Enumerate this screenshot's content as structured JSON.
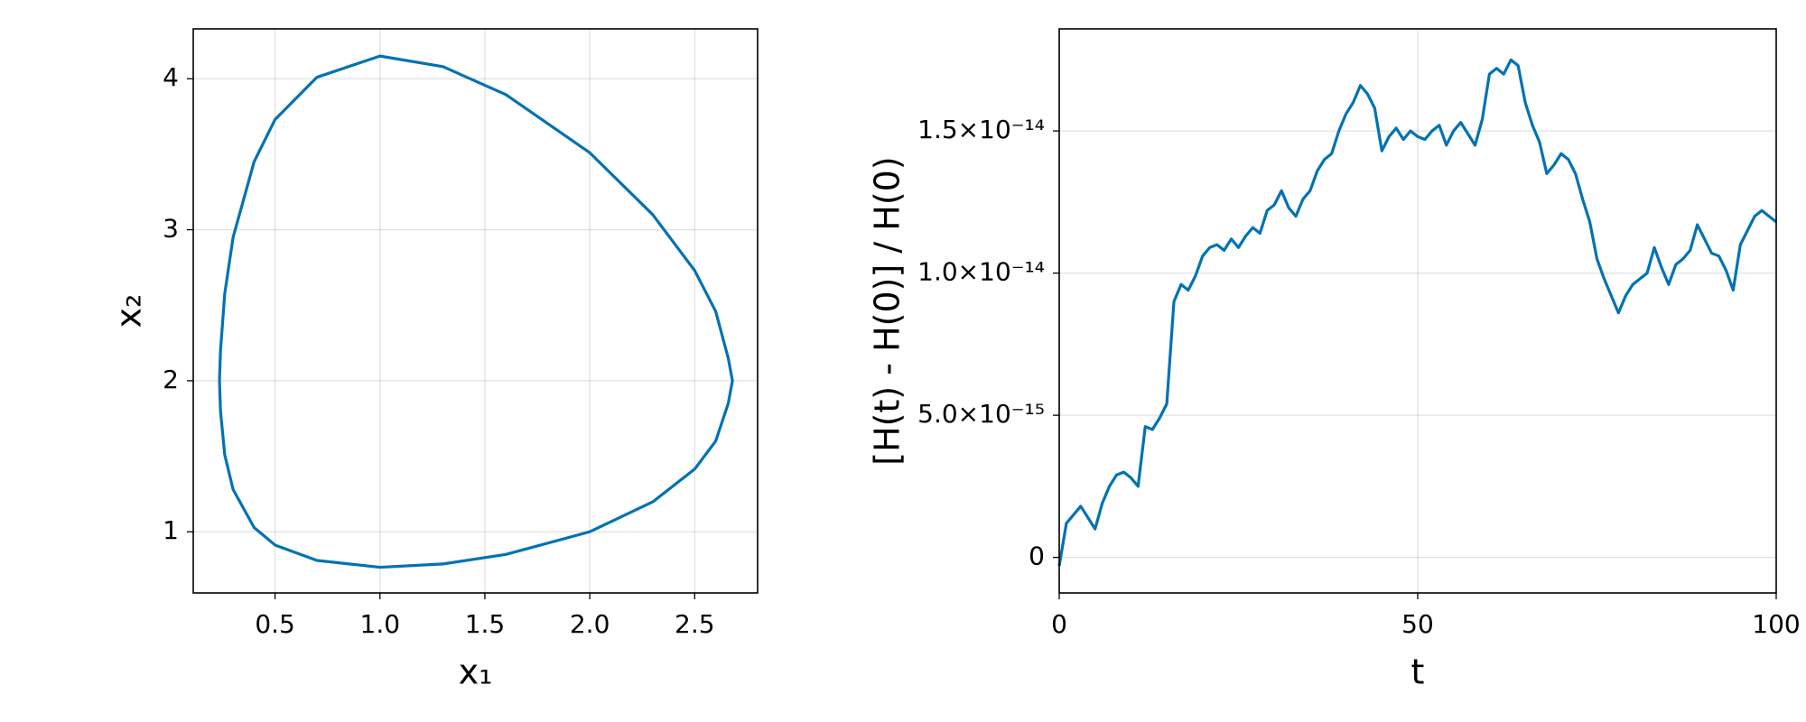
{
  "chart_data": [
    {
      "type": "line",
      "xlabel": "x₁",
      "ylabel": "x₂",
      "color": "#0072b2",
      "grid": true,
      "xlim": [
        0.11,
        2.8
      ],
      "ylim": [
        0.595,
        4.33
      ],
      "xticks": [
        0.5,
        {
          "value": 1,
          "label": "1.0"
        },
        1.5,
        {
          "value": 2,
          "label": "2.0"
        },
        2.5
      ],
      "yticks": [
        1,
        2,
        3,
        4
      ],
      "x": [
        0.235,
        0.24,
        0.26,
        0.3,
        0.4,
        0.5,
        0.7,
        1.0,
        1.3,
        1.6,
        2.0,
        2.3,
        2.5,
        2.6,
        2.66,
        2.68,
        2.66,
        2.6,
        2.5,
        2.3,
        2.0,
        1.6,
        1.3,
        1.0,
        0.7,
        0.5,
        0.4,
        0.3,
        0.26,
        0.24,
        0.235
      ],
      "values": [
        2.0,
        1.8,
        1.51,
        1.28,
        1.028,
        0.912,
        0.81,
        0.765,
        0.787,
        0.85,
        1.0,
        1.198,
        1.415,
        1.6,
        1.85,
        2.0,
        2.15,
        2.46,
        2.73,
        3.1,
        3.51,
        3.895,
        4.08,
        4.15,
        4.01,
        3.73,
        3.45,
        2.95,
        2.575,
        2.2,
        2.0
      ]
    },
    {
      "type": "line",
      "xlabel": "t",
      "ylabel": "[H(t) - H(0)] / H(0)",
      "color": "#0072b2",
      "grid": true,
      "xlim": [
        0,
        100
      ],
      "ylim": [
        -1.25e-15,
        1.859e-14
      ],
      "xticks": [
        0,
        50,
        100
      ],
      "yticks": [
        0,
        {
          "value": 5e-15,
          "label": "5.0×10⁻¹⁵"
        },
        {
          "value": 1e-14,
          "label": "1.0×10⁻¹⁴"
        },
        {
          "value": 1.5e-14,
          "label": "1.5×10⁻¹⁴"
        }
      ],
      "x": [
        0,
        1,
        2,
        3,
        4,
        5,
        6,
        7,
        8,
        9,
        10,
        11,
        12,
        13,
        14,
        15,
        16,
        17,
        18,
        19,
        20,
        21,
        22,
        23,
        24,
        25,
        26,
        27,
        28,
        29,
        30,
        31,
        32,
        33,
        34,
        35,
        36,
        37,
        38,
        39,
        40,
        41,
        42,
        43,
        44,
        45,
        46,
        47,
        48,
        49,
        50,
        51,
        52,
        53,
        54,
        55,
        56,
        57,
        58,
        59,
        60,
        61,
        62,
        63,
        64,
        65,
        66,
        67,
        68,
        69,
        70,
        71,
        72,
        73,
        74,
        75,
        76,
        77,
        78,
        79,
        80,
        81,
        82,
        83,
        84,
        85,
        86,
        87,
        88,
        89,
        90,
        91,
        92,
        93,
        94,
        95,
        96,
        97,
        98,
        99,
        100
      ],
      "values": [
        -3e-16,
        1.2e-15,
        1.5e-15,
        1.8e-15,
        1.4e-15,
        1e-15,
        1.9e-15,
        2.5e-15,
        2.9e-15,
        3e-15,
        2.8e-15,
        2.5e-15,
        4.6e-15,
        4.5e-15,
        4.9e-15,
        5.4e-15,
        9e-15,
        9.6e-15,
        9.4e-15,
        9.9e-15,
        1.06e-14,
        1.09e-14,
        1.1e-14,
        1.08e-14,
        1.12e-14,
        1.09e-14,
        1.13e-14,
        1.16e-14,
        1.14e-14,
        1.22e-14,
        1.24e-14,
        1.29e-14,
        1.23e-14,
        1.2e-14,
        1.26e-14,
        1.29e-14,
        1.36e-14,
        1.4e-14,
        1.42e-14,
        1.5e-14,
        1.56e-14,
        1.6e-14,
        1.66e-14,
        1.63e-14,
        1.58e-14,
        1.43e-14,
        1.48e-14,
        1.51e-14,
        1.47e-14,
        1.5e-14,
        1.48e-14,
        1.47e-14,
        1.5e-14,
        1.52e-14,
        1.45e-14,
        1.5e-14,
        1.53e-14,
        1.49e-14,
        1.45e-14,
        1.54e-14,
        1.7e-14,
        1.72e-14,
        1.7e-14,
        1.75e-14,
        1.73e-14,
        1.6e-14,
        1.52e-14,
        1.46e-14,
        1.35e-14,
        1.38e-14,
        1.42e-14,
        1.4e-14,
        1.35e-14,
        1.26e-14,
        1.18e-14,
        1.05e-14,
        9.8e-15,
        9.2e-15,
        8.6e-15,
        9.2e-15,
        9.6e-15,
        9.8e-15,
        1e-14,
        1.09e-14,
        1.02e-14,
        9.6e-15,
        1.03e-14,
        1.05e-14,
        1.08e-14,
        1.17e-14,
        1.12e-14,
        1.07e-14,
        1.06e-14,
        1.01e-14,
        9.4e-15,
        1.1e-14,
        1.15e-14,
        1.2e-14,
        1.22e-14,
        1.2e-14,
        1.18e-14
      ]
    }
  ]
}
